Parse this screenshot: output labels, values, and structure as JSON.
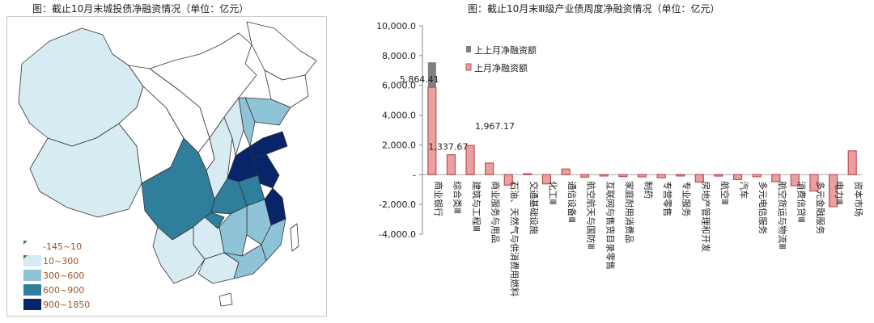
{
  "map": {
    "title": "图：截止10月末城投债净融资情况（单位：亿元）",
    "legend": [
      {
        "label": "-145~10",
        "color": "#ffffff"
      },
      {
        "label": "10~300",
        "color": "#d6ebf2"
      },
      {
        "label": "300~600",
        "color": "#8fc3d7"
      },
      {
        "label": "600~900",
        "color": "#2f7f9c"
      },
      {
        "label": "900~1850",
        "color": "#08246b"
      }
    ]
  },
  "chart_data": {
    "type": "bar",
    "title": "图：截止10月末Ⅲ级产业债周度净融资情况（单位：亿元）",
    "categories": [
      "商业银行",
      "综合类Ⅲ",
      "建筑与工程Ⅲ",
      "商业服务与用品",
      "石油、天然气与供消费用燃料",
      "交通基础设施",
      "化工Ⅲ",
      "通信设备Ⅲ",
      "航空航天与国防Ⅲ",
      "互联网与售货目录零售",
      "家庭耐用消费品",
      "制药",
      "专营零售",
      "专业服务",
      "房地产管理和开发",
      "航空Ⅲ",
      "汽车",
      "多元电信服务",
      "航空货运与物流Ⅲ",
      "消费信贷Ⅲ",
      "多元金融服务",
      "电力Ⅲ",
      "资本市场"
    ],
    "ylim": [
      -4000,
      10000
    ],
    "yticks": [
      "10,000.0",
      "8,000.0",
      "6,000.0",
      "4,000.0",
      "2,000.0",
      "-",
      "-2,000.0",
      "-4,000.0"
    ],
    "series": [
      {
        "name": "上上月净融资额",
        "color": "#7f7f7f",
        "values": [
          7550,
          1150,
          1967,
          750,
          -650,
          60,
          -600,
          250,
          -150,
          -80,
          -120,
          -150,
          -200,
          -80,
          -480,
          -90,
          -300,
          -130,
          -450,
          -700,
          -900,
          -1000,
          1250
        ]
      },
      {
        "name": "上月净融资额",
        "color": "#c0504d",
        "values": [
          5864.41,
          1337.67,
          1967.17,
          780,
          -700,
          60,
          -620,
          380,
          -170,
          -90,
          -130,
          -150,
          -210,
          -90,
          -500,
          -95,
          -330,
          -140,
          -470,
          -750,
          -1100,
          -2150,
          1600
        ]
      }
    ],
    "data_labels": [
      "5,864.41",
      "1,337.67",
      "1,967.17"
    ]
  }
}
